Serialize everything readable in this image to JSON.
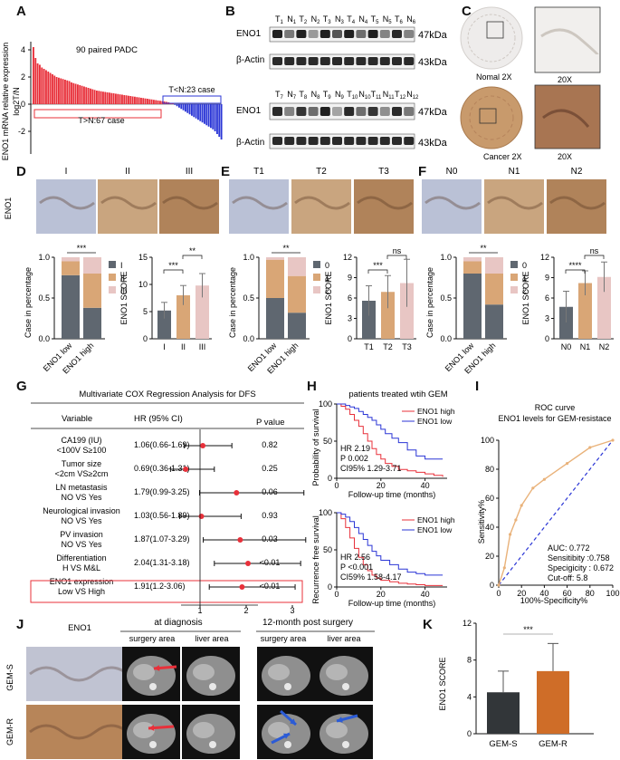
{
  "panels": {
    "A": {
      "label": "A",
      "ylabel": "ENO1 mRNA relative expression",
      "ylabel2": "log2T/N",
      "title": "90 paired PADC",
      "pos_note": "T>N:67 case",
      "neg_note": "T<N:23 case",
      "yticks": [
        "4",
        "2",
        "0",
        "-2"
      ]
    },
    "B": {
      "label": "B",
      "row1_lanes": [
        "T1",
        "N1",
        "T2",
        "N2",
        "T3",
        "N3",
        "T4",
        "N4",
        "T5",
        "N5",
        "T6",
        "N6"
      ],
      "row2_lanes": [
        "T7",
        "N7",
        "T8",
        "N8",
        "T9",
        "N9",
        "T10",
        "N10",
        "T11",
        "N11",
        "T12",
        "N12"
      ],
      "eno1": "ENO1",
      "actin": "β-Actin",
      "kda47": "47kDa",
      "kda43": "43kDa"
    },
    "C": {
      "label": "C",
      "normal": "Nomal 2X",
      "cancer": "Cancer 2X",
      "zoom": "20X"
    },
    "D": {
      "label": "D",
      "groups": [
        "I",
        "II",
        "III"
      ],
      "side": "ENO1",
      "bar_ylabel": "Case in percentage",
      "bar_x": [
        "ENO1 low",
        "ENO1 high"
      ],
      "bar_yticks": [
        "0.0",
        "0.5",
        "1.0"
      ],
      "legend": [
        "I",
        "II",
        "III"
      ],
      "sig_bar": "***",
      "score_ylabel": "ENO1 SCORE",
      "score_yticks": [
        "0",
        "5",
        "10",
        "15"
      ],
      "score_x": [
        "I",
        "II",
        "III"
      ],
      "sig1": "***",
      "sig2": "**"
    },
    "E": {
      "label": "E",
      "groups": [
        "T1",
        "T2",
        "T3"
      ],
      "bar_ylabel": "Case in percentage",
      "bar_x": [
        "ENO1 low",
        "ENO1 high"
      ],
      "bar_yticks": [
        "0.0",
        "0.5",
        "1.0"
      ],
      "legend": [
        "0",
        "1",
        "2"
      ],
      "sig_bar": "**",
      "score_ylabel": "ENO1 SCORE",
      "score_yticks": [
        "0",
        "3",
        "6",
        "9",
        "12"
      ],
      "score_x": [
        "T1",
        "T2",
        "T3"
      ],
      "sig1": "***",
      "sig2": "ns"
    },
    "F": {
      "label": "F",
      "groups": [
        "N0",
        "N1",
        "N2"
      ],
      "bar_ylabel": "Case in percentage",
      "bar_x": [
        "ENO1 low",
        "ENO1 high"
      ],
      "bar_yticks": [
        "0.0",
        "0.5",
        "1.0"
      ],
      "legend": [
        "0",
        "1",
        "2"
      ],
      "sig_bar": "**",
      "score_ylabel": "ENO1 SCORE",
      "score_yticks": [
        "0",
        "3",
        "6",
        "9",
        "12"
      ],
      "score_x": [
        "N0",
        "N1",
        "N2"
      ],
      "sig1": "****",
      "sig2": "ns"
    },
    "G": {
      "label": "G",
      "title": "Multivariate COX  Regression Analysis for DFS",
      "col_variable": "Variable",
      "col_hr": "HR (95% CI)",
      "col_p": "P value",
      "rows": [
        {
          "v1": "CA199 (IU)",
          "v2": "<100V S≥100",
          "hr": "1.06(0.66-1.69)",
          "p": "0.82"
        },
        {
          "v1": "Tumor size",
          "v2": "<2cm VS≥2cm",
          "hr": "0.69(0.36-1.31)",
          "p": "0.25"
        },
        {
          "v1": "LN metastasis",
          "v2": "NO VS Yes",
          "hr": "1.79(0.99-3.25)",
          "p": "0.06"
        },
        {
          "v1": "Neurological invasion",
          "v2": "NO VS Yes",
          "hr": "1.03(0.56-1.89)",
          "p": "0.93"
        },
        {
          "v1": "PV invasion",
          "v2": "NO VS Yes",
          "hr": "1.87(1.07-3.29)",
          "p": "0.03"
        },
        {
          "v1": "Differentiation",
          "v2": "H VS M&L",
          "hr": "2.04(1.31-3.18)",
          "p": "<0.01"
        },
        {
          "v1": "ENO1 expression",
          "v2": "Low VS High",
          "hr": "1.91(1.2-3.06)",
          "p": "<0.01"
        }
      ],
      "xticks": [
        "1",
        "2",
        "3"
      ]
    },
    "H": {
      "label": "H",
      "title": "patients treated wtih GEM",
      "top_ylabel": "Probability of survival",
      "bot_ylabel": "Recurrence free survival",
      "xlabel": "Follow-up time (months)",
      "yticks": [
        "0",
        "50",
        "100"
      ],
      "xticks": [
        "0",
        "20",
        "40"
      ],
      "legend": [
        "ENO1 high",
        "ENO1 low"
      ],
      "top_stats": [
        "HR 2.19",
        "P 0.002",
        "CI95% 1.29-3.71"
      ],
      "bot_stats": [
        "HR 2.56",
        "P <0.001",
        "CI59% 1.58-4.17"
      ]
    },
    "I": {
      "label": "I",
      "title1": "ROC  curve",
      "title2": "ENO1 levels for GEM-resistace",
      "ylabel": "Sensitivity%",
      "xlabel": "100%-Specificity%",
      "ticks": [
        "0",
        "20",
        "40",
        "60",
        "80",
        "100"
      ],
      "stats": [
        "AUC: 0.772",
        "Sensitibity :0.758",
        "Specigicity : 0.672",
        "Cut-off: 5.8"
      ]
    },
    "J": {
      "label": "J",
      "col_eno1": "ENO1",
      "at_diagnosis": "at diagnosis",
      "post": "12-month post surgery",
      "surgery_area": "surgery area",
      "liver_area": "liver area",
      "rows": [
        "GEM-S",
        "GEM-R"
      ]
    },
    "K": {
      "label": "K",
      "ylabel": "ENO1 SCORE",
      "yticks": [
        "0",
        "4",
        "8",
        "12"
      ],
      "x": [
        "GEM-S",
        "GEM-R"
      ],
      "sig": "***"
    }
  },
  "chart_data": [
    {
      "type": "bar",
      "title": "90 paired PADC",
      "ylabel": "ENO1 mRNA relative expression log2T/N",
      "ylim": [
        -3,
        4
      ],
      "note": "Waterfall of 90 paired samples: 67 positive (red), 23 negative (blue)",
      "values": [
        4.2,
        3.4,
        3.0,
        2.9,
        2.7,
        2.6,
        2.5,
        2.4,
        2.3,
        2.2,
        2.1,
        2.0,
        1.95,
        1.9,
        1.85,
        1.8,
        1.75,
        1.7,
        1.6,
        1.55,
        1.5,
        1.45,
        1.4,
        1.35,
        1.3,
        1.25,
        1.2,
        1.15,
        1.1,
        1.05,
        1.0,
        0.98,
        0.95,
        0.92,
        0.9,
        0.87,
        0.85,
        0.82,
        0.8,
        0.77,
        0.75,
        0.72,
        0.7,
        0.67,
        0.65,
        0.62,
        0.6,
        0.57,
        0.55,
        0.52,
        0.5,
        0.47,
        0.45,
        0.42,
        0.4,
        0.37,
        0.35,
        0.32,
        0.3,
        0.27,
        0.25,
        0.22,
        0.2,
        0.17,
        0.14,
        0.1,
        0.05,
        -0.05,
        -0.15,
        -0.25,
        -0.35,
        -0.45,
        -0.55,
        -0.65,
        -0.75,
        -0.85,
        -0.95,
        -1.05,
        -1.15,
        -1.25,
        -1.35,
        -1.45,
        -1.55,
        -1.65,
        -1.75,
        -1.85,
        -2.0,
        -2.2,
        -2.4,
        -2.6
      ]
    },
    {
      "type": "bar",
      "title": "",
      "ylabel": "Case in percentage",
      "categories": [
        "ENO1 low",
        "ENO1 high"
      ],
      "ylim": [
        0,
        1
      ],
      "series": [
        {
          "name": "I",
          "values": [
            0.78,
            0.38
          ],
          "color": "#5f6770"
        },
        {
          "name": "II",
          "values": [
            0.17,
            0.42
          ],
          "color": "#d9a676"
        },
        {
          "name": "III",
          "values": [
            0.05,
            0.2
          ],
          "color": "#e8c6c4"
        }
      ]
    },
    {
      "type": "bar",
      "ylabel": "ENO1 SCORE",
      "categories": [
        "I",
        "II",
        "III"
      ],
      "values": [
        5.2,
        8.0,
        9.8
      ],
      "errors": [
        1.5,
        1.8,
        2.2
      ],
      "ylim": [
        0,
        15
      ],
      "colors": [
        "#5f6770",
        "#d9a676",
        "#e8c6c4"
      ]
    },
    {
      "type": "bar",
      "ylabel": "Case in percentage",
      "categories": [
        "ENO1 low",
        "ENO1 high"
      ],
      "ylim": [
        0,
        1
      ],
      "series": [
        {
          "name": "0",
          "values": [
            0.5,
            0.32
          ],
          "color": "#5f6770"
        },
        {
          "name": "1",
          "values": [
            0.47,
            0.45
          ],
          "color": "#d9a676"
        },
        {
          "name": "2",
          "values": [
            0.03,
            0.23
          ],
          "color": "#e8c6c4"
        }
      ]
    },
    {
      "type": "bar",
      "ylabel": "ENO1 SCORE",
      "categories": [
        "T1",
        "T2",
        "T3"
      ],
      "values": [
        5.6,
        6.9,
        8.2
      ],
      "errors": [
        2.2,
        2.4,
        3.5
      ],
      "ylim": [
        0,
        12
      ],
      "colors": [
        "#5f6770",
        "#d9a676",
        "#e8c6c4"
      ]
    },
    {
      "type": "bar",
      "ylabel": "Case in percentage",
      "categories": [
        "ENO1 low",
        "ENO1 high"
      ],
      "ylim": [
        0,
        1
      ],
      "series": [
        {
          "name": "0",
          "values": [
            0.8,
            0.42
          ],
          "color": "#5f6770"
        },
        {
          "name": "1",
          "values": [
            0.15,
            0.38
          ],
          "color": "#d9a676"
        },
        {
          "name": "2",
          "values": [
            0.05,
            0.2
          ],
          "color": "#e8c6c4"
        }
      ]
    },
    {
      "type": "bar",
      "ylabel": "ENO1 SCORE",
      "categories": [
        "N0",
        "N1",
        "N2"
      ],
      "values": [
        4.7,
        8.2,
        9.1
      ],
      "errors": [
        2.3,
        1.8,
        2.2
      ],
      "ylim": [
        0,
        12
      ],
      "colors": [
        "#5f6770",
        "#d9a676",
        "#e8c6c4"
      ]
    },
    {
      "type": "scatter",
      "title": "Multivariate COX  Regression Analysis for DFS",
      "note": "Forest plot",
      "x": [
        1.06,
        0.69,
        1.79,
        1.03,
        1.87,
        2.04,
        1.91
      ],
      "lower": [
        0.66,
        0.36,
        0.99,
        0.56,
        1.07,
        1.31,
        1.2
      ],
      "upper": [
        1.69,
        1.31,
        3.25,
        1.89,
        3.29,
        3.18,
        3.06
      ],
      "xlim": [
        0,
        3.5
      ]
    },
    {
      "type": "line",
      "title": "patients treated wtih GEM",
      "ylabel": "Probability of survival",
      "xlabel": "Follow-up time (months)",
      "ylim": [
        0,
        100
      ],
      "xlim": [
        0,
        50
      ],
      "series": [
        {
          "name": "ENO1 high",
          "color": "#e8303a",
          "x": [
            0,
            2,
            4,
            6,
            8,
            10,
            12,
            14,
            16,
            18,
            20,
            22,
            25,
            28,
            32,
            36,
            40,
            44,
            48
          ],
          "y": [
            100,
            97,
            93,
            86,
            78,
            70,
            60,
            50,
            40,
            32,
            26,
            20,
            16,
            12,
            10,
            8,
            6,
            4,
            2
          ]
        },
        {
          "name": "ENO1 low",
          "color": "#2b36d6",
          "x": [
            0,
            2,
            4,
            6,
            8,
            10,
            12,
            14,
            16,
            18,
            20,
            22,
            25,
            28,
            32,
            36,
            40,
            44,
            48
          ],
          "y": [
            100,
            100,
            98,
            96,
            94,
            90,
            86,
            82,
            78,
            72,
            66,
            60,
            54,
            48,
            38,
            30,
            26,
            26,
            26
          ]
        }
      ]
    },
    {
      "type": "line",
      "ylabel": "Recurrence free survival",
      "xlabel": "Follow-up time (months)",
      "ylim": [
        0,
        100
      ],
      "xlim": [
        0,
        50
      ],
      "series": [
        {
          "name": "ENO1 high",
          "color": "#e8303a",
          "x": [
            0,
            2,
            4,
            6,
            8,
            10,
            12,
            14,
            16,
            18,
            20,
            24,
            28,
            32,
            36,
            40,
            44,
            48
          ],
          "y": [
            100,
            92,
            80,
            66,
            52,
            40,
            30,
            22,
            16,
            12,
            9,
            7,
            5,
            4,
            3,
            2,
            2,
            2
          ]
        },
        {
          "name": "ENO1 low",
          "color": "#2b36d6",
          "x": [
            0,
            2,
            4,
            6,
            8,
            10,
            12,
            14,
            16,
            18,
            20,
            24,
            28,
            32,
            36,
            40,
            44,
            48
          ],
          "y": [
            100,
            98,
            94,
            88,
            80,
            72,
            64,
            56,
            48,
            42,
            36,
            30,
            24,
            20,
            18,
            16,
            16,
            16
          ]
        }
      ]
    },
    {
      "type": "line",
      "title": "ROC  curve",
      "ylabel": "Sensitivity%",
      "xlabel": "100%-Specificity%",
      "xlim": [
        0,
        100
      ],
      "ylim": [
        0,
        100
      ],
      "series": [
        {
          "name": "ROC",
          "color": "#e9b27a",
          "x": [
            0,
            5,
            10,
            15,
            20,
            30,
            40,
            60,
            80,
            100
          ],
          "y": [
            0,
            12,
            35,
            45,
            55,
            67,
            73,
            84,
            95,
            100
          ]
        },
        {
          "name": "reference",
          "color": "#2b36d6",
          "x": [
            0,
            100
          ],
          "y": [
            0,
            100
          ]
        }
      ]
    },
    {
      "type": "bar",
      "ylabel": "ENO1 SCORE",
      "categories": [
        "GEM-S",
        "GEM-R"
      ],
      "values": [
        4.5,
        6.8
      ],
      "errors": [
        2.3,
        3.0
      ],
      "ylim": [
        0,
        12
      ],
      "colors": [
        "#323639",
        "#cf6d28"
      ]
    }
  ]
}
